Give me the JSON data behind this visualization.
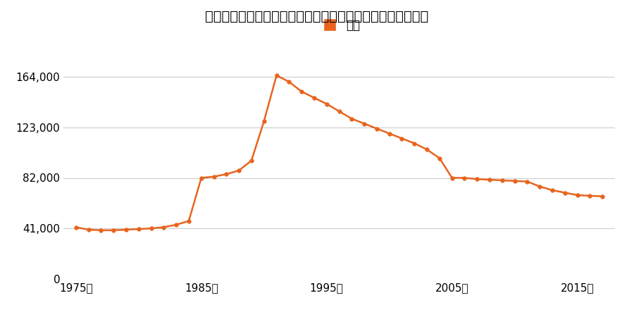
{
  "title": "栃木県宇都宮市一の沢町字大谷道上２５０番１９の地価推移",
  "legend_label": "価格",
  "line_color": "#e8641e",
  "marker_color": "#e8641e",
  "background_color": "#ffffff",
  "years": [
    1975,
    1976,
    1977,
    1978,
    1979,
    1980,
    1981,
    1982,
    1983,
    1984,
    1985,
    1986,
    1987,
    1988,
    1989,
    1990,
    1991,
    1992,
    1993,
    1994,
    1995,
    1996,
    1997,
    1998,
    1999,
    2000,
    2001,
    2002,
    2003,
    2004,
    2005,
    2006,
    2007,
    2008,
    2009,
    2010,
    2011,
    2012,
    2013,
    2014,
    2015,
    2016,
    2017
  ],
  "values": [
    42000,
    40000,
    39500,
    39500,
    40000,
    40500,
    41000,
    42000,
    44000,
    47000,
    82000,
    83000,
    85000,
    88000,
    96000,
    128000,
    165000,
    160000,
    152000,
    147000,
    142000,
    136000,
    130000,
    126000,
    122000,
    118000,
    114000,
    110000,
    105000,
    98000,
    82000,
    82000,
    81000,
    80500,
    80000,
    79500,
    79000,
    75000,
    72000,
    70000,
    68000,
    67500,
    67000
  ],
  "yticks": [
    0,
    41000,
    82000,
    123000,
    164000
  ],
  "ytick_labels": [
    "0",
    "41,000",
    "82,000",
    "123,000",
    "164,000"
  ],
  "xticks": [
    1975,
    1985,
    1995,
    2005,
    2015
  ],
  "xtick_labels": [
    "1975年",
    "1985年",
    "1995年",
    "2005年",
    "2015年"
  ],
  "ylim": [
    0,
    180000
  ],
  "xlim": [
    1974,
    2018
  ]
}
